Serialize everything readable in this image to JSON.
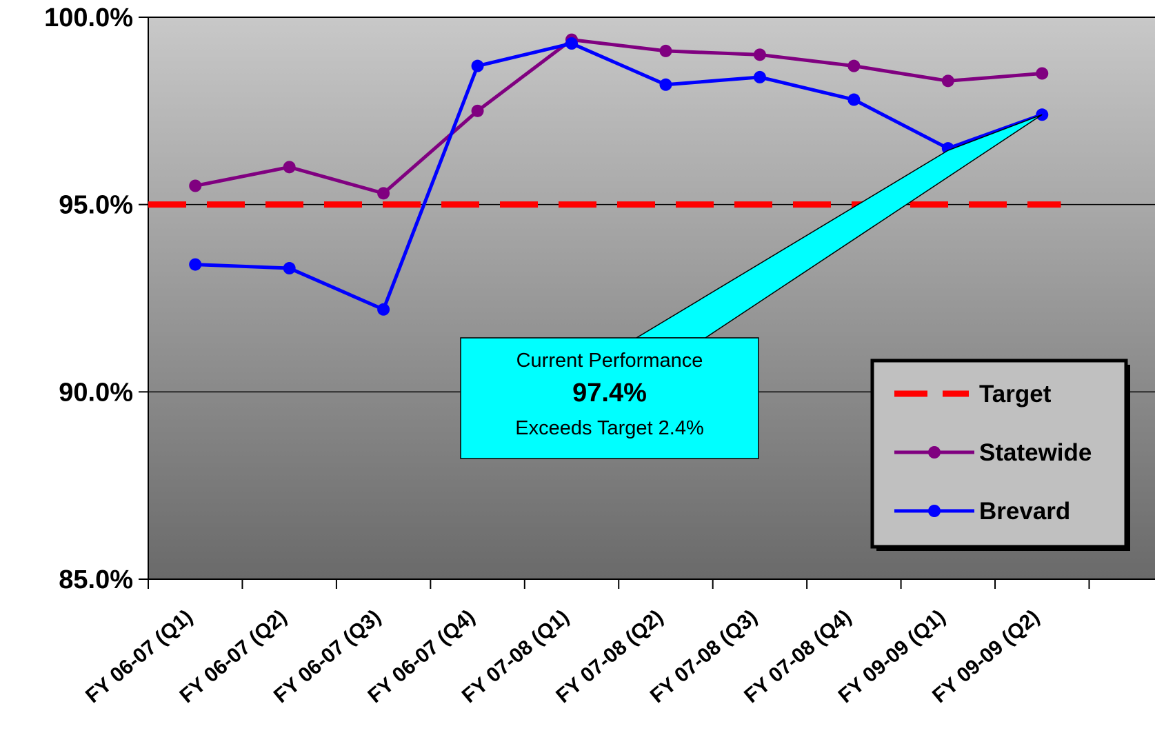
{
  "chart_data": {
    "type": "line",
    "title": "",
    "xlabel": "",
    "ylabel": "",
    "categories": [
      "FY 06-07 (Q1)",
      "FY 06-07 (Q2)",
      "FY 06-07 (Q3)",
      "FY 06-07 (Q4)",
      "FY 07-08 (Q1)",
      "FY 07-08 (Q2)",
      "FY 07-08 (Q3)",
      "FY 07-08 (Q4)",
      "FY 09-09 (Q1)",
      "FY 09-09 (Q2)"
    ],
    "ylim": [
      85,
      100
    ],
    "yticks": [
      85,
      90,
      95,
      100
    ],
    "ytick_labels": [
      "85.0%",
      "90.0%",
      "95.0%",
      "100.0%"
    ],
    "grid": true,
    "legend_position": "bottom-right",
    "series": [
      {
        "name": "Target",
        "values": [
          95.0,
          95.0,
          95.0,
          95.0,
          95.0,
          95.0,
          95.0,
          95.0,
          95.0,
          95.0
        ],
        "color": "#ff0000",
        "style": "dashed"
      },
      {
        "name": "Statewide",
        "values": [
          95.5,
          96.0,
          95.3,
          97.5,
          99.4,
          99.1,
          99.0,
          98.7,
          98.3,
          98.5
        ],
        "color": "#800080",
        "style": "solid-marker"
      },
      {
        "name": "Brevard",
        "values": [
          93.4,
          93.3,
          92.2,
          98.7,
          99.3,
          98.2,
          98.4,
          97.8,
          96.5,
          97.4
        ],
        "color": "#0000ff",
        "style": "solid-marker"
      }
    ],
    "annotation": {
      "line1": "Current Performance",
      "value": "97.4%",
      "line3": "Exceeds Target 2.4%",
      "fill": "#00ffff",
      "pointer_from_category_index": 8,
      "pointer_to_category_index": 9
    },
    "colors": {
      "plot_top": "#c8c8c8",
      "plot_bottom": "#6a6a6a"
    }
  }
}
